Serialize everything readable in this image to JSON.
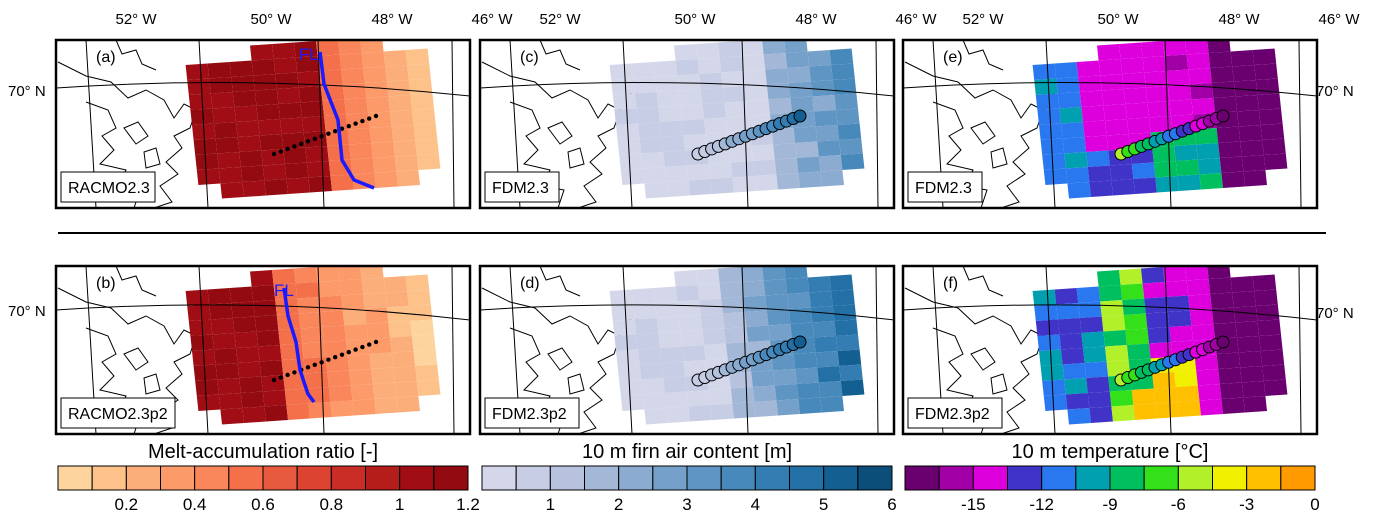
{
  "lon_labels": [
    "52° W",
    "50° W",
    "48° W",
    "46° W"
  ],
  "lat_label": "70° N",
  "flow_line_label": "FL",
  "panels": [
    {
      "letter": "(a)",
      "model": "RACMO2.3",
      "variable": "melt_ratio",
      "period": "old"
    },
    {
      "letter": "(b)",
      "model": "RACMO2.3p2",
      "variable": "melt_ratio",
      "period": "new"
    },
    {
      "letter": "(c)",
      "model": "FDM2.3",
      "variable": "firn_air",
      "period": "old"
    },
    {
      "letter": "(d)",
      "model": "FDM2.3p2",
      "variable": "firn_air",
      "period": "new"
    },
    {
      "letter": "(e)",
      "model": "FDM2.3",
      "variable": "temperature",
      "period": "old"
    },
    {
      "letter": "(f)",
      "model": "FDM2.3p2",
      "variable": "temperature",
      "period": "new"
    }
  ],
  "colorbars": [
    {
      "title": "Melt-accumulation ratio [-]",
      "ticks": [
        "0.2",
        "0.4",
        "0.6",
        "0.8",
        "1",
        "1.2"
      ],
      "colors": [
        "#fdd49e",
        "#fdc28a",
        "#fcae7a",
        "#fc9a6a",
        "#fa865b",
        "#f3704b",
        "#e85a3e",
        "#dc4331",
        "#c92d25",
        "#b51d1b",
        "#a00d14",
        "#930a10"
      ]
    },
    {
      "title": "10 m  firn air  content [m]",
      "ticks": [
        "1",
        "2",
        "3",
        "4",
        "5",
        "6"
      ],
      "colors": [
        "#d4d7ea",
        "#c7cde4",
        "#b7c3de",
        "#a3b7d7",
        "#8cabd0",
        "#75a0ca",
        "#5f95c3",
        "#4889bb",
        "#347db2",
        "#2270a5",
        "#145f92",
        "#0c4e7a"
      ]
    },
    {
      "title": "10 m  temperature  [°C]",
      "title_unit": "C",
      "ticks": [
        "-15",
        "-12",
        "-9",
        "-6",
        "-3",
        "0"
      ],
      "colors": [
        "#6a0070",
        "#a000a6",
        "#dd00dd",
        "#3f33c8",
        "#2a78f0",
        "#00a0b0",
        "#00bf5f",
        "#33e01a",
        "#b2f02a",
        "#f0f000",
        "#ffc000",
        "#ff9a00"
      ]
    }
  ],
  "colors": {
    "flow_line": "#1a1aff",
    "transect_points": "#000000",
    "frame": "#000000"
  }
}
